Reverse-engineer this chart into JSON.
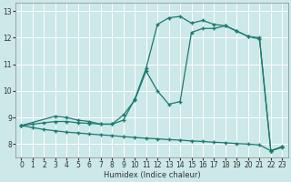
{
  "xlabel": "Humidex (Indice chaleur)",
  "bg_color": "#cce8e8",
  "grid_color": "#ffffff",
  "line_color": "#1a7a6e",
  "line1_x": [
    0,
    1,
    2,
    3,
    4,
    5,
    6,
    7,
    8,
    9,
    10,
    11,
    12,
    13,
    14,
    15,
    16,
    17,
    18,
    19,
    20,
    21,
    22,
    23
  ],
  "line1_y": [
    8.7,
    8.75,
    8.8,
    8.85,
    8.85,
    8.8,
    8.78,
    8.75,
    8.75,
    8.9,
    9.7,
    10.85,
    12.5,
    12.75,
    12.8,
    12.55,
    12.65,
    12.5,
    12.45,
    12.25,
    12.05,
    11.95,
    7.75,
    7.9
  ],
  "line2_x": [
    0,
    3,
    4,
    5,
    6,
    7,
    8,
    9,
    10,
    11,
    12,
    13,
    14,
    15,
    16,
    17,
    18,
    19,
    20,
    21,
    22,
    23
  ],
  "line2_y": [
    8.7,
    9.05,
    9.0,
    8.9,
    8.85,
    8.75,
    8.75,
    9.1,
    9.65,
    10.75,
    10.0,
    9.5,
    9.6,
    12.2,
    12.35,
    12.35,
    12.45,
    12.25,
    12.05,
    12.0,
    7.75,
    7.9
  ],
  "line3_x": [
    0,
    1,
    2,
    3,
    4,
    5,
    6,
    7,
    8,
    9,
    10,
    11,
    12,
    13,
    14,
    15,
    16,
    17,
    18,
    19,
    20,
    21,
    22,
    23
  ],
  "line3_y": [
    8.7,
    8.62,
    8.55,
    8.5,
    8.45,
    8.42,
    8.38,
    8.35,
    8.32,
    8.28,
    8.25,
    8.22,
    8.2,
    8.17,
    8.15,
    8.12,
    8.1,
    8.07,
    8.05,
    8.02,
    8.0,
    7.97,
    7.75,
    7.88
  ],
  "xlim": [
    -0.5,
    23.5
  ],
  "ylim": [
    7.5,
    13.3
  ],
  "yticks": [
    8,
    9,
    10,
    11,
    12,
    13
  ],
  "xticks": [
    0,
    1,
    2,
    3,
    4,
    5,
    6,
    7,
    8,
    9,
    10,
    11,
    12,
    13,
    14,
    15,
    16,
    17,
    18,
    19,
    20,
    21,
    22,
    23
  ]
}
